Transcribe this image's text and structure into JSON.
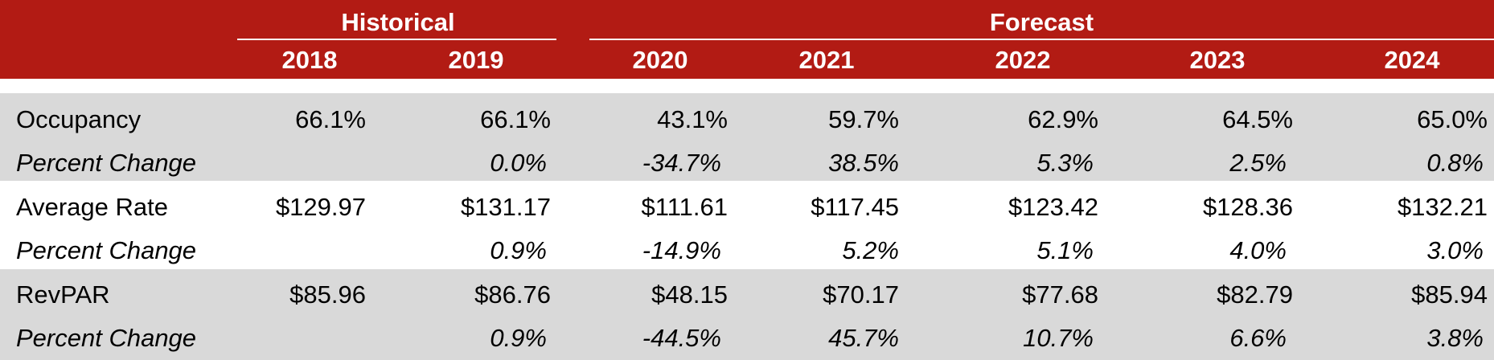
{
  "header": {
    "groups": [
      "Historical",
      "Forecast"
    ],
    "years": [
      "2018",
      "2019",
      "2020",
      "2021",
      "2022",
      "2023",
      "2024"
    ]
  },
  "rows": [
    {
      "label": "Occupancy",
      "values": [
        "66.1%",
        "66.1%",
        "43.1%",
        "59.7%",
        "62.9%",
        "64.5%",
        "65.0%"
      ]
    },
    {
      "label": "Percent Change",
      "values": [
        "",
        "0.0%",
        "-34.7%",
        "38.5%",
        "5.3%",
        "2.5%",
        "0.8%"
      ]
    },
    {
      "label": "Average Rate",
      "values": [
        "$129.97",
        "$131.17",
        "$111.61",
        "$117.45",
        "$123.42",
        "$128.36",
        "$132.21"
      ]
    },
    {
      "label": "Percent Change",
      "values": [
        "",
        "0.9%",
        "-14.9%",
        "5.2%",
        "5.1%",
        "4.0%",
        "3.0%"
      ]
    },
    {
      "label": "RevPAR",
      "values": [
        "$85.96",
        "$86.76",
        "$48.15",
        "$70.17",
        "$77.68",
        "$82.79",
        "$85.94"
      ]
    },
    {
      "label": "Percent Change",
      "values": [
        "",
        "0.9%",
        "-44.5%",
        "45.7%",
        "10.7%",
        "6.6%",
        "3.8%"
      ]
    }
  ],
  "colors": {
    "header_bg": "#b21b14",
    "band_gray": "#d9d9d9",
    "header_text": "#ffffff"
  }
}
